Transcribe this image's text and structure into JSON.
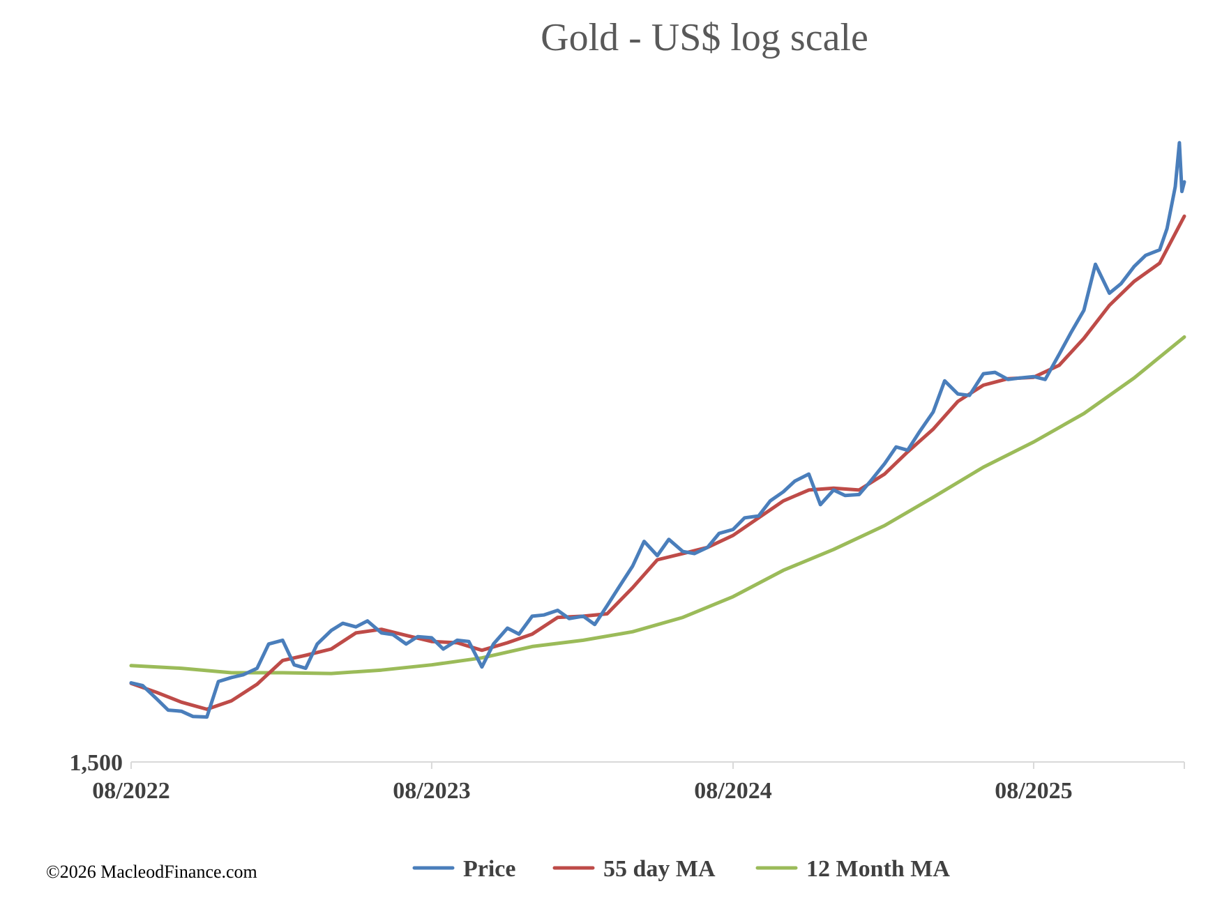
{
  "chart_data": {
    "type": "line",
    "title": "Gold - US$ log scale",
    "xlabel": "",
    "ylabel": "",
    "y_scale": "log",
    "y_ticks": [
      {
        "value": 1500,
        "label": "1,500"
      }
    ],
    "ylim": [
      1500,
      5600
    ],
    "xlim": [
      "2022-08-01",
      "2026-01-31"
    ],
    "x_ticks": [
      {
        "date": "2022-08-01",
        "label": "08/2022"
      },
      {
        "date": "2023-08-01",
        "label": "08/2023"
      },
      {
        "date": "2024-08-01",
        "label": "08/2024"
      },
      {
        "date": "2025-08-01",
        "label": "08/2025"
      }
    ],
    "grid": false,
    "legend_position": "bottom",
    "colors": {
      "price": "#4a7ebb",
      "ma55": "#be4b48",
      "ma12m": "#9bbb59"
    },
    "series": [
      {
        "name": "Price",
        "color": "#4a7ebb",
        "points": [
          [
            "2022-08-01",
            1770
          ],
          [
            "2022-08-15",
            1760
          ],
          [
            "2022-09-01",
            1712
          ],
          [
            "2022-09-15",
            1672
          ],
          [
            "2022-10-01",
            1668
          ],
          [
            "2022-10-15",
            1650
          ],
          [
            "2022-11-01",
            1648
          ],
          [
            "2022-11-15",
            1775
          ],
          [
            "2022-12-01",
            1790
          ],
          [
            "2022-12-15",
            1800
          ],
          [
            "2023-01-01",
            1825
          ],
          [
            "2023-01-15",
            1920
          ],
          [
            "2023-02-01",
            1935
          ],
          [
            "2023-02-15",
            1838
          ],
          [
            "2023-03-01",
            1825
          ],
          [
            "2023-03-15",
            1920
          ],
          [
            "2023-04-01",
            1975
          ],
          [
            "2023-04-15",
            2005
          ],
          [
            "2023-05-01",
            1990
          ],
          [
            "2023-05-15",
            2015
          ],
          [
            "2023-06-01",
            1965
          ],
          [
            "2023-06-15",
            1958
          ],
          [
            "2023-07-01",
            1920
          ],
          [
            "2023-07-15",
            1950
          ],
          [
            "2023-08-01",
            1945
          ],
          [
            "2023-08-15",
            1900
          ],
          [
            "2023-09-01",
            1935
          ],
          [
            "2023-09-15",
            1930
          ],
          [
            "2023-10-01",
            1830
          ],
          [
            "2023-10-15",
            1920
          ],
          [
            "2023-11-01",
            1985
          ],
          [
            "2023-11-15",
            1960
          ],
          [
            "2023-12-01",
            2035
          ],
          [
            "2023-12-15",
            2040
          ],
          [
            "2024-01-01",
            2060
          ],
          [
            "2024-01-15",
            2025
          ],
          [
            "2024-02-01",
            2035
          ],
          [
            "2024-02-15",
            2000
          ],
          [
            "2024-03-01",
            2080
          ],
          [
            "2024-03-15",
            2160
          ],
          [
            "2024-04-01",
            2260
          ],
          [
            "2024-04-15",
            2380
          ],
          [
            "2024-05-01",
            2310
          ],
          [
            "2024-05-15",
            2390
          ],
          [
            "2024-06-01",
            2330
          ],
          [
            "2024-06-15",
            2320
          ],
          [
            "2024-07-01",
            2350
          ],
          [
            "2024-07-15",
            2420
          ],
          [
            "2024-08-01",
            2440
          ],
          [
            "2024-08-15",
            2500
          ],
          [
            "2024-09-01",
            2510
          ],
          [
            "2024-09-15",
            2590
          ],
          [
            "2024-10-01",
            2640
          ],
          [
            "2024-10-15",
            2700
          ],
          [
            "2024-11-01",
            2740
          ],
          [
            "2024-11-15",
            2570
          ],
          [
            "2024-12-01",
            2650
          ],
          [
            "2024-12-15",
            2620
          ],
          [
            "2025-01-01",
            2625
          ],
          [
            "2025-01-15",
            2700
          ],
          [
            "2025-02-01",
            2800
          ],
          [
            "2025-02-15",
            2900
          ],
          [
            "2025-03-01",
            2880
          ],
          [
            "2025-03-15",
            2990
          ],
          [
            "2025-04-01",
            3120
          ],
          [
            "2025-04-15",
            3330
          ],
          [
            "2025-05-01",
            3240
          ],
          [
            "2025-05-15",
            3230
          ],
          [
            "2025-06-01",
            3380
          ],
          [
            "2025-06-15",
            3390
          ],
          [
            "2025-07-01",
            3340
          ],
          [
            "2025-07-15",
            3350
          ],
          [
            "2025-08-01",
            3360
          ],
          [
            "2025-08-15",
            3340
          ],
          [
            "2025-09-01",
            3520
          ],
          [
            "2025-09-15",
            3680
          ],
          [
            "2025-10-01",
            3860
          ],
          [
            "2025-10-15",
            4250
          ],
          [
            "2025-11-01",
            4000
          ],
          [
            "2025-11-15",
            4080
          ],
          [
            "2025-12-01",
            4230
          ],
          [
            "2025-12-15",
            4330
          ],
          [
            "2026-01-01",
            4380
          ],
          [
            "2026-01-10",
            4580
          ],
          [
            "2026-01-20",
            5000
          ],
          [
            "2026-01-25",
            5480
          ],
          [
            "2026-01-28",
            4950
          ],
          [
            "2026-01-31",
            5050
          ]
        ]
      },
      {
        "name": "55 day MA",
        "color": "#be4b48",
        "points": [
          [
            "2022-08-01",
            1768
          ],
          [
            "2022-09-01",
            1735
          ],
          [
            "2022-10-01",
            1700
          ],
          [
            "2022-11-01",
            1675
          ],
          [
            "2022-12-01",
            1705
          ],
          [
            "2023-01-01",
            1765
          ],
          [
            "2023-02-01",
            1855
          ],
          [
            "2023-03-01",
            1875
          ],
          [
            "2023-04-01",
            1900
          ],
          [
            "2023-05-01",
            1965
          ],
          [
            "2023-06-01",
            1980
          ],
          [
            "2023-07-01",
            1955
          ],
          [
            "2023-08-01",
            1930
          ],
          [
            "2023-09-01",
            1925
          ],
          [
            "2023-10-01",
            1895
          ],
          [
            "2023-11-01",
            1925
          ],
          [
            "2023-12-01",
            1960
          ],
          [
            "2024-01-01",
            2030
          ],
          [
            "2024-02-01",
            2035
          ],
          [
            "2024-03-01",
            2045
          ],
          [
            "2024-04-01",
            2160
          ],
          [
            "2024-05-01",
            2290
          ],
          [
            "2024-06-01",
            2320
          ],
          [
            "2024-07-01",
            2350
          ],
          [
            "2024-08-01",
            2410
          ],
          [
            "2024-09-01",
            2500
          ],
          [
            "2024-10-01",
            2590
          ],
          [
            "2024-11-01",
            2650
          ],
          [
            "2024-12-01",
            2660
          ],
          [
            "2025-01-01",
            2650
          ],
          [
            "2025-02-01",
            2740
          ],
          [
            "2025-03-01",
            2870
          ],
          [
            "2025-04-01",
            3010
          ],
          [
            "2025-05-01",
            3190
          ],
          [
            "2025-06-01",
            3300
          ],
          [
            "2025-07-01",
            3345
          ],
          [
            "2025-08-01",
            3355
          ],
          [
            "2025-09-01",
            3440
          ],
          [
            "2025-10-01",
            3640
          ],
          [
            "2025-11-01",
            3900
          ],
          [
            "2025-12-01",
            4100
          ],
          [
            "2026-01-01",
            4260
          ],
          [
            "2026-01-31",
            4700
          ]
        ]
      },
      {
        "name": "12 Month MA",
        "color": "#9bbb59",
        "points": [
          [
            "2022-08-01",
            1835
          ],
          [
            "2022-10-01",
            1825
          ],
          [
            "2022-12-01",
            1808
          ],
          [
            "2023-02-01",
            1808
          ],
          [
            "2023-04-01",
            1805
          ],
          [
            "2023-06-01",
            1818
          ],
          [
            "2023-08-01",
            1838
          ],
          [
            "2023-10-01",
            1865
          ],
          [
            "2023-12-01",
            1910
          ],
          [
            "2024-02-01",
            1935
          ],
          [
            "2024-04-01",
            1970
          ],
          [
            "2024-06-01",
            2030
          ],
          [
            "2024-08-01",
            2120
          ],
          [
            "2024-10-01",
            2240
          ],
          [
            "2024-12-01",
            2340
          ],
          [
            "2025-02-01",
            2460
          ],
          [
            "2025-04-01",
            2610
          ],
          [
            "2025-06-01",
            2780
          ],
          [
            "2025-08-01",
            2930
          ],
          [
            "2025-10-01",
            3110
          ],
          [
            "2025-12-01",
            3350
          ],
          [
            "2026-01-31",
            3650
          ]
        ]
      }
    ]
  },
  "legend": [
    {
      "label": "Price",
      "color": "#4a7ebb"
    },
    {
      "label": "55 day MA",
      "color": "#be4b48"
    },
    {
      "label": "12 Month MA",
      "color": "#9bbb59"
    }
  ],
  "footer": {
    "copyright": "©2026 MacleodFinance.com"
  }
}
